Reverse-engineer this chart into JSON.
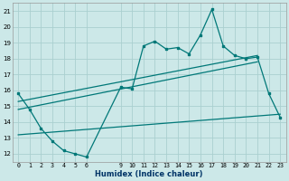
{
  "title": "",
  "xlabel": "Humidex (Indice chaleur)",
  "bg_color": "#cce8e8",
  "grid_color": "#aacfcf",
  "line_color": "#007878",
  "xlim": [
    -0.5,
    23.5
  ],
  "ylim": [
    11.5,
    21.5
  ],
  "yticks": [
    12,
    13,
    14,
    15,
    16,
    17,
    18,
    19,
    20,
    21
  ],
  "xticks": [
    0,
    1,
    2,
    3,
    4,
    5,
    6,
    9,
    10,
    11,
    12,
    13,
    14,
    15,
    16,
    17,
    18,
    19,
    20,
    21,
    22,
    23
  ],
  "main_x": [
    0,
    1,
    2,
    3,
    4,
    5,
    6,
    9,
    10,
    11,
    12,
    13,
    14,
    15,
    16,
    17,
    18,
    19,
    20,
    21,
    22,
    23
  ],
  "main_y": [
    15.8,
    14.8,
    13.6,
    12.8,
    12.2,
    12.0,
    11.8,
    16.2,
    16.1,
    18.8,
    19.1,
    18.6,
    18.7,
    18.3,
    19.5,
    21.1,
    18.8,
    18.2,
    18.0,
    18.1,
    15.8,
    14.3
  ],
  "line2_x": [
    0,
    21
  ],
  "line2_y": [
    15.3,
    18.2
  ],
  "line3_x": [
    0,
    21
  ],
  "line3_y": [
    14.8,
    17.8
  ],
  "line4_x": [
    0,
    23
  ],
  "line4_y": [
    13.2,
    14.5
  ]
}
